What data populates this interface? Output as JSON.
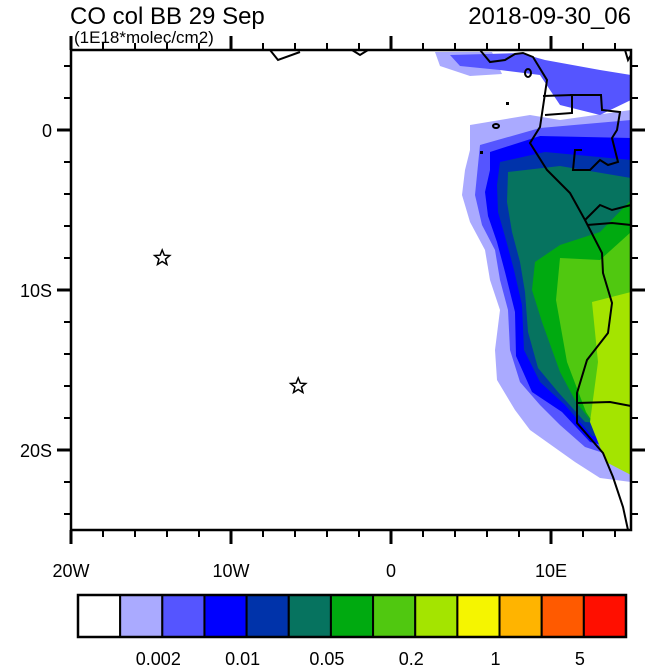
{
  "title_left": "CO col BB 29 Sep",
  "title_right": "2018-09-30_06",
  "units": "(1E18*molec/cm2)",
  "map": {
    "lon_range": [
      -20,
      15
    ],
    "lat_range": [
      -25,
      5
    ],
    "x_ticks": [
      {
        "value": -20,
        "label": "20W"
      },
      {
        "value": -10,
        "label": "10W"
      },
      {
        "value": 0,
        "label": "0"
      },
      {
        "value": 10,
        "label": "10E"
      }
    ],
    "y_ticks": [
      {
        "value": 0,
        "label": "0"
      },
      {
        "value": -10,
        "label": "10S"
      },
      {
        "value": -20,
        "label": "20S"
      }
    ],
    "markers": [
      {
        "type": "star",
        "lon": -14.3,
        "lat": -8
      },
      {
        "type": "star",
        "lon": -5.8,
        "lat": -16
      }
    ]
  },
  "colorbar": {
    "colors": [
      "#FFFFFF",
      "#AAAAFF",
      "#5555FF",
      "#0000FF",
      "#0033AA",
      "#06735F",
      "#00AA10",
      "#50C810",
      "#A4E400",
      "#F5F500",
      "#FFB400",
      "#FF5A00",
      "#FF0F00"
    ],
    "labels": [
      {
        "boundary": 2,
        "label": "0.002"
      },
      {
        "boundary": 4,
        "label": "0.01"
      },
      {
        "boundary": 6,
        "label": "0.05"
      },
      {
        "boundary": 8,
        "label": "0.2"
      },
      {
        "boundary": 10,
        "label": "1"
      },
      {
        "boundary": 12,
        "label": "5"
      }
    ]
  }
}
